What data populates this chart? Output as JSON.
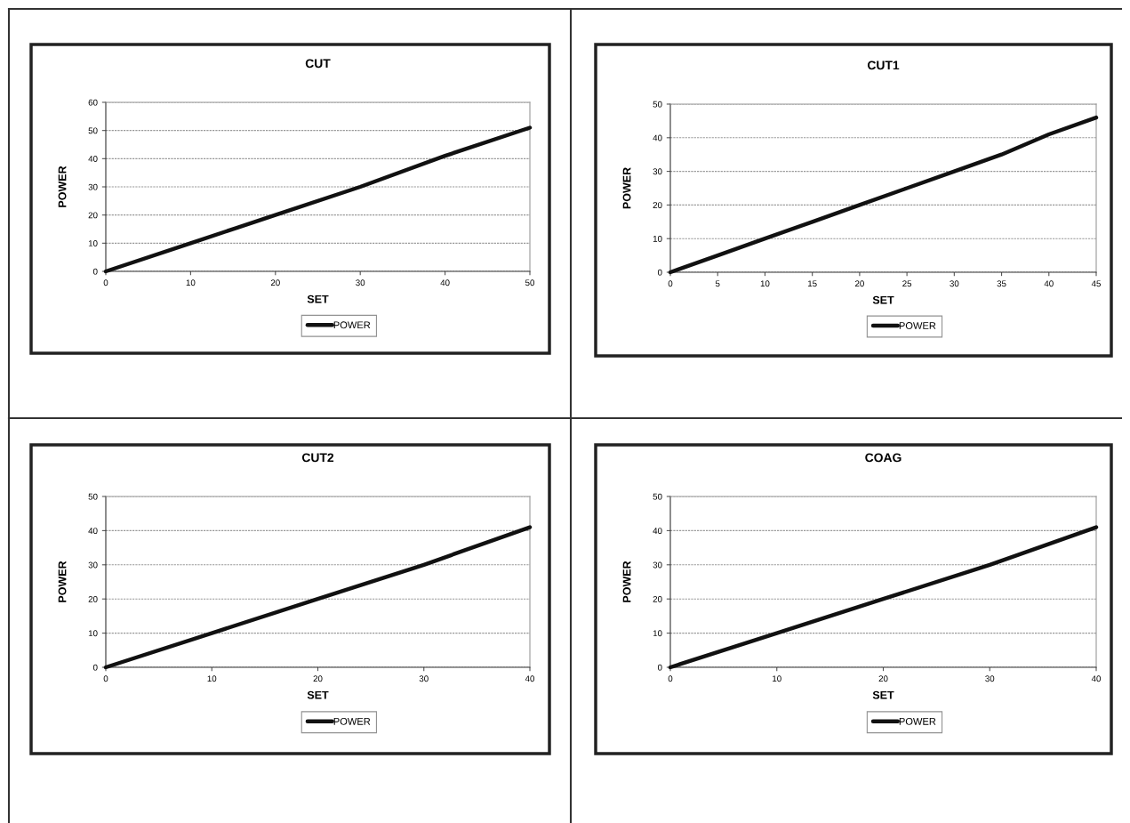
{
  "chart_data": [
    {
      "type": "line",
      "title": "CUT",
      "xlabel": "SET",
      "ylabel": "POWER",
      "x": [
        0,
        10,
        20,
        30,
        40,
        50
      ],
      "series": [
        {
          "name": "POWER",
          "color": "#111111",
          "values": [
            0,
            10,
            20,
            30,
            41,
            51
          ]
        }
      ],
      "xlim": [
        0,
        50
      ],
      "xticks": [
        0,
        10,
        20,
        30,
        40,
        50
      ],
      "ylim": [
        0,
        60
      ],
      "yticks": [
        0,
        10,
        20,
        30,
        40,
        50,
        60
      ],
      "grid": "y",
      "legend": "bottom",
      "marker": "none",
      "line_style": "solid"
    },
    {
      "type": "line",
      "title": "CUT1",
      "xlabel": "SET",
      "ylabel": "POWER",
      "x": [
        0,
        5,
        10,
        15,
        20,
        25,
        30,
        35,
        40,
        45
      ],
      "series": [
        {
          "name": "POWER",
          "color": "#111111",
          "values": [
            0,
            5,
            10,
            15,
            20,
            25,
            30,
            35,
            41,
            46
          ]
        }
      ],
      "xlim": [
        0,
        45
      ],
      "xticks": [
        0,
        5,
        10,
        15,
        20,
        25,
        30,
        35,
        40,
        45
      ],
      "ylim": [
        0,
        50
      ],
      "yticks": [
        0,
        10,
        20,
        30,
        40,
        50
      ],
      "grid": "y",
      "legend": "bottom",
      "marker": "none",
      "line_style": "solid"
    },
    {
      "type": "line",
      "title": "CUT2",
      "xlabel": "SET",
      "ylabel": "POWER",
      "x": [
        0,
        10,
        20,
        30,
        40
      ],
      "series": [
        {
          "name": "POWER",
          "color": "#111111",
          "values": [
            0,
            10,
            20,
            30,
            41
          ]
        }
      ],
      "xlim": [
        0,
        40
      ],
      "xticks": [
        0,
        10,
        20,
        30,
        40
      ],
      "ylim": [
        0,
        50
      ],
      "yticks": [
        0,
        10,
        20,
        30,
        40,
        50
      ],
      "grid": "y",
      "legend": "bottom",
      "marker": "none",
      "line_style": "solid"
    },
    {
      "type": "line",
      "title": "COAG",
      "xlabel": "SET",
      "ylabel": "POWER",
      "x": [
        0,
        10,
        20,
        30,
        40
      ],
      "series": [
        {
          "name": "POWER",
          "color": "#111111",
          "values": [
            0,
            10,
            20,
            30,
            41
          ]
        }
      ],
      "xlim": [
        0,
        40
      ],
      "xticks": [
        0,
        10,
        20,
        30,
        40
      ],
      "ylim": [
        0,
        50
      ],
      "yticks": [
        0,
        10,
        20,
        30,
        40,
        50
      ],
      "grid": "y",
      "legend": "bottom",
      "marker": "none",
      "line_style": "solid"
    }
  ]
}
